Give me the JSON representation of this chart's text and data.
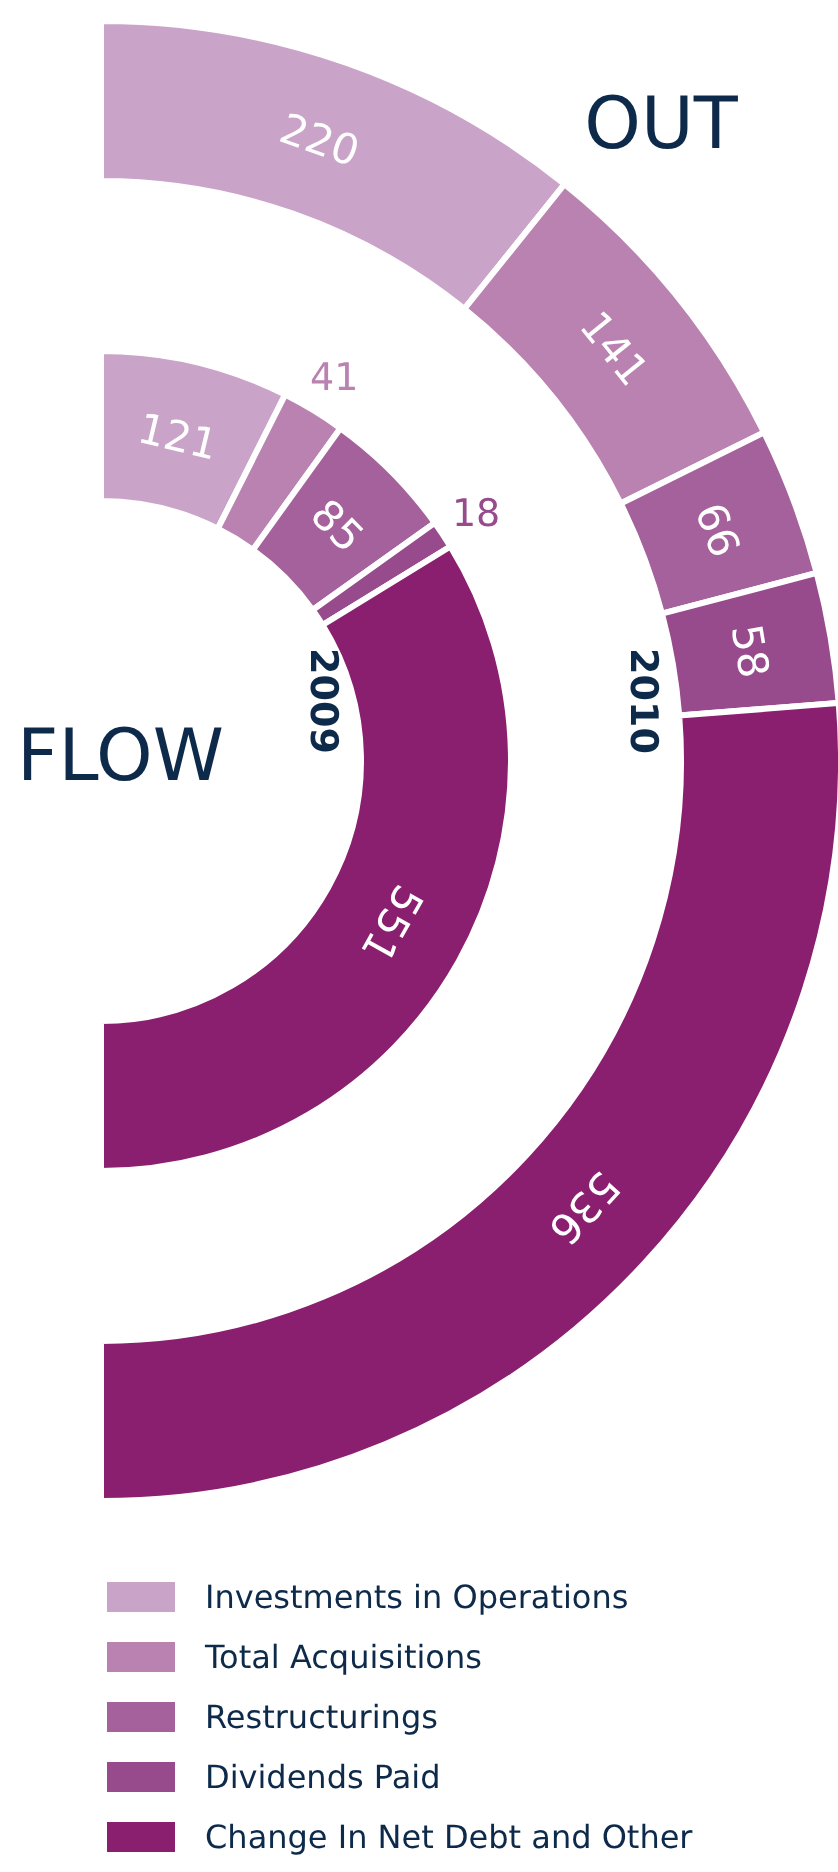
{
  "chart_data": {
    "type": "donut",
    "annotations": [
      "OUT",
      "FLOW"
    ],
    "categories": [
      "Investments in Operations",
      "Total Acquisitions",
      "Restructurings",
      "Dividends Paid",
      "Change In Net Debt and Other"
    ],
    "colors": [
      "#caa3c8",
      "#b982b1",
      "#a4619b",
      "#974a8c",
      "#8a1f6f"
    ],
    "series": [
      {
        "name": "2009",
        "values": [
          121,
          41,
          85,
          18,
          551
        ]
      },
      {
        "name": "2010",
        "values": [
          220,
          141,
          66,
          58,
          536
        ]
      }
    ],
    "data_labels": true,
    "legend": "bottom"
  }
}
